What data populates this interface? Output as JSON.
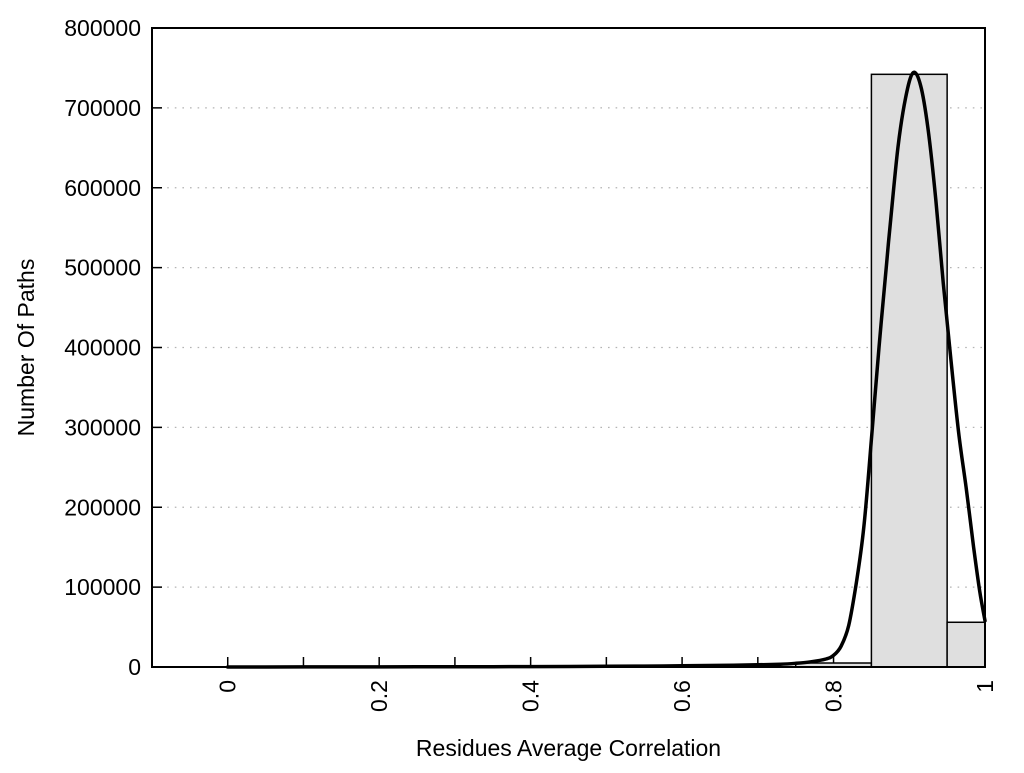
{
  "chart_data": {
    "type": "bar",
    "subtype": "histogram-with-fit-curve",
    "title": "",
    "xlabel": "Residues Average Correlation",
    "ylabel": "Number Of Paths",
    "xlim": [
      -0.1,
      1.0
    ],
    "ylim": [
      0,
      800000
    ],
    "grid": "horizontal-dotted",
    "legend_position": "none",
    "x_minor_ticks": [
      0,
      0.1,
      0.2,
      0.3,
      0.4,
      0.5,
      0.6,
      0.7,
      0.8,
      0.9,
      1.0
    ],
    "x_tick_labels": [
      {
        "value": 0,
        "label": "0"
      },
      {
        "value": 0.2,
        "label": "0.2"
      },
      {
        "value": 0.4,
        "label": "0.4"
      },
      {
        "value": 0.6,
        "label": "0.6"
      },
      {
        "value": 0.8,
        "label": "0.8"
      },
      {
        "value": 1.0,
        "label": "1"
      }
    ],
    "y_ticks": [
      {
        "value": 0,
        "label": "0"
      },
      {
        "value": 100000,
        "label": "100000"
      },
      {
        "value": 200000,
        "label": "200000"
      },
      {
        "value": 300000,
        "label": "300000"
      },
      {
        "value": 400000,
        "label": "400000"
      },
      {
        "value": 500000,
        "label": "500000"
      },
      {
        "value": 600000,
        "label": "600000"
      },
      {
        "value": 700000,
        "label": "700000"
      },
      {
        "value": 800000,
        "label": "800000"
      }
    ],
    "y_grid_values": [
      100000,
      200000,
      300000,
      400000,
      500000,
      600000,
      700000
    ],
    "bin_width": 0.1,
    "bars": [
      {
        "x0": 0.75,
        "x1": 0.85,
        "center": 0.8,
        "value": 5000
      },
      {
        "x0": 0.85,
        "x1": 0.95,
        "center": 0.9,
        "value": 742000
      },
      {
        "x0": 0.95,
        "x1": 1.0,
        "center": 1.0,
        "value": 56000,
        "note": "clipped at x=1.0"
      }
    ],
    "curve_name": "fit-curve",
    "curve_peak": {
      "x": 0.905,
      "value": 744000
    },
    "curve_points": [
      [
        0.0,
        0
      ],
      [
        0.05,
        50
      ],
      [
        0.1,
        80
      ],
      [
        0.15,
        100
      ],
      [
        0.2,
        150
      ],
      [
        0.25,
        200
      ],
      [
        0.3,
        280
      ],
      [
        0.35,
        380
      ],
      [
        0.4,
        500
      ],
      [
        0.45,
        650
      ],
      [
        0.5,
        850
      ],
      [
        0.55,
        1100
      ],
      [
        0.6,
        1500
      ],
      [
        0.65,
        2000
      ],
      [
        0.7,
        2800
      ],
      [
        0.73,
        3500
      ],
      [
        0.75,
        4600
      ],
      [
        0.77,
        6500
      ],
      [
        0.79,
        10000
      ],
      [
        0.8,
        14500
      ],
      [
        0.81,
        26000
      ],
      [
        0.82,
        52000
      ],
      [
        0.83,
        105000
      ],
      [
        0.84,
        175000
      ],
      [
        0.85,
        285000
      ],
      [
        0.86,
        400000
      ],
      [
        0.87,
        505000
      ],
      [
        0.875,
        555000
      ],
      [
        0.885,
        650000
      ],
      [
        0.895,
        712000
      ],
      [
        0.905,
        744000
      ],
      [
        0.915,
        728000
      ],
      [
        0.925,
        672000
      ],
      [
        0.935,
        585000
      ],
      [
        0.945,
        480000
      ],
      [
        0.955,
        385000
      ],
      [
        0.965,
        295000
      ],
      [
        0.975,
        225000
      ],
      [
        0.985,
        150000
      ],
      [
        0.993,
        95000
      ],
      [
        1.0,
        58000
      ]
    ],
    "colors": {
      "background": "#ffffff",
      "bar_fill": "#dfdfdf",
      "bar_border": "#000000",
      "curve": "#000000",
      "grid": "#b3b3b3",
      "axis": "#000000",
      "text": "#000000"
    }
  }
}
